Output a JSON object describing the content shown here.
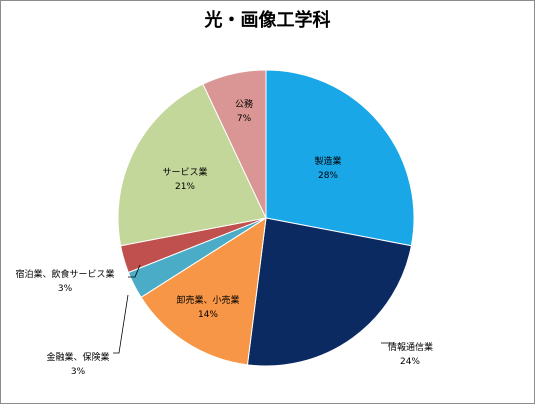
{
  "chart_data": {
    "type": "pie",
    "title": "光・画像工学科",
    "slices": [
      {
        "name": "製造業",
        "value": 28,
        "label": "28%",
        "color": "#1aa7e8"
      },
      {
        "name": "情報通信業",
        "value": 24,
        "label": "24%",
        "color": "#0b2a62"
      },
      {
        "name": "卸売業、小売業",
        "value": 14,
        "label": "14%",
        "color": "#f79646"
      },
      {
        "name": "金融業、保険業",
        "value": 3,
        "label": "3%",
        "color": "#4aacc6"
      },
      {
        "name": "宿泊業、飲食サービス業",
        "value": 3,
        "label": "3%",
        "color": "#c0504d"
      },
      {
        "name": "サービス業",
        "value": 21,
        "label": "21%",
        "color": "#c4d79b"
      },
      {
        "name": "公務",
        "value": 7,
        "label": "7%",
        "color": "#da9694"
      }
    ],
    "start": "12 o'clock",
    "direction": "clockwise"
  }
}
